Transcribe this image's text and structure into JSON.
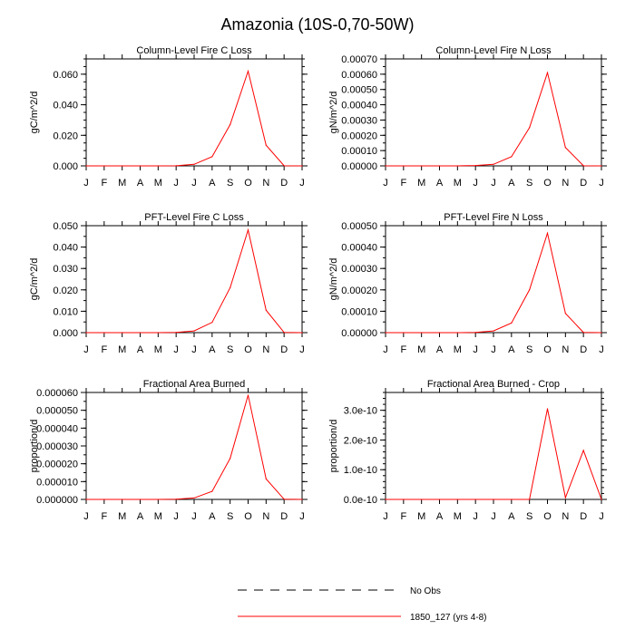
{
  "title": "Amazonia (10S-0,70-50W)",
  "legend": {
    "items": [
      {
        "label": "No Obs",
        "color": "#000000",
        "dashed": true
      },
      {
        "label": "1850_127 (yrs 4-8)",
        "color": "#ff0000",
        "dashed": false
      }
    ]
  },
  "chart_data": [
    {
      "type": "line",
      "title": "Column-Level Fire C Loss",
      "ylabel": "gC/m^2/d",
      "xlabel": "",
      "categories": [
        "J",
        "F",
        "M",
        "A",
        "M",
        "J",
        "J",
        "A",
        "S",
        "O",
        "N",
        "D",
        "J"
      ],
      "ylim": [
        0,
        0.07
      ],
      "yticks": [
        0,
        0.02,
        0.04,
        0.06
      ],
      "ytick_labels": [
        "0.000",
        "0.020",
        "0.040",
        "0.060"
      ],
      "yminor": 0.005,
      "series": [
        {
          "name": "1850_127 (yrs 4-8)",
          "color": "#ff0000",
          "values": [
            0,
            0,
            0,
            0,
            0,
            0.0001,
            0.001,
            0.006,
            0.027,
            0.062,
            0.0135,
            0.0001,
            0
          ]
        }
      ]
    },
    {
      "type": "line",
      "title": "Column-Level Fire N Loss",
      "ylabel": "gN/m^2/d",
      "xlabel": "",
      "categories": [
        "J",
        "F",
        "M",
        "A",
        "M",
        "J",
        "J",
        "A",
        "S",
        "O",
        "N",
        "D",
        "J"
      ],
      "ylim": [
        0,
        0.0007
      ],
      "yticks": [
        0,
        0.0001,
        0.0002,
        0.0003,
        0.0004,
        0.0005,
        0.0006,
        0.0007
      ],
      "ytick_labels": [
        "0.00000",
        "0.00010",
        "0.00020",
        "0.00030",
        "0.00040",
        "0.00050",
        "0.00060",
        "0.00070"
      ],
      "yminor": 5e-05,
      "series": [
        {
          "name": "1850_127 (yrs 4-8)",
          "color": "#ff0000",
          "values": [
            0,
            0,
            0,
            0,
            0,
            2e-06,
            1e-05,
            6e-05,
            0.00025,
            0.00061,
            0.00012,
            1e-06,
            0
          ]
        }
      ]
    },
    {
      "type": "line",
      "title": "PFT-Level Fire C Loss",
      "ylabel": "gC/m^2/d",
      "xlabel": "",
      "categories": [
        "J",
        "F",
        "M",
        "A",
        "M",
        "J",
        "J",
        "A",
        "S",
        "O",
        "N",
        "D",
        "J"
      ],
      "ylim": [
        0,
        0.05
      ],
      "yticks": [
        0,
        0.01,
        0.02,
        0.03,
        0.04,
        0.05
      ],
      "ytick_labels": [
        "0.000",
        "0.010",
        "0.020",
        "0.030",
        "0.040",
        "0.050"
      ],
      "yminor": 0.005,
      "series": [
        {
          "name": "1850_127 (yrs 4-8)",
          "color": "#ff0000",
          "values": [
            0,
            0,
            0,
            0,
            0,
            0.0001,
            0.0008,
            0.0048,
            0.021,
            0.048,
            0.0105,
            0.0001,
            0
          ]
        }
      ]
    },
    {
      "type": "line",
      "title": "PFT-Level Fire N Loss",
      "ylabel": "gN/m^2/d",
      "xlabel": "",
      "categories": [
        "J",
        "F",
        "M",
        "A",
        "M",
        "J",
        "J",
        "A",
        "S",
        "O",
        "N",
        "D",
        "J"
      ],
      "ylim": [
        0,
        0.0005
      ],
      "yticks": [
        0,
        0.0001,
        0.0002,
        0.0003,
        0.0004,
        0.0005
      ],
      "ytick_labels": [
        "0.00000",
        "0.00010",
        "0.00020",
        "0.00030",
        "0.00040",
        "0.00050"
      ],
      "yminor": 5e-05,
      "series": [
        {
          "name": "1850_127 (yrs 4-8)",
          "color": "#ff0000",
          "values": [
            0,
            0,
            0,
            0,
            0,
            1e-06,
            8e-06,
            4.5e-05,
            0.0002,
            0.000465,
            9e-05,
            1e-06,
            0
          ]
        }
      ]
    },
    {
      "type": "line",
      "title": "Fractional Area Burned",
      "ylabel": "proportion/d",
      "xlabel": "",
      "categories": [
        "J",
        "F",
        "M",
        "A",
        "M",
        "J",
        "J",
        "A",
        "S",
        "O",
        "N",
        "D",
        "J"
      ],
      "ylim": [
        0,
        6e-05
      ],
      "yticks": [
        0,
        1e-05,
        2e-05,
        3e-05,
        4e-05,
        5e-05,
        6e-05
      ],
      "ytick_labels": [
        "0.000000",
        "0.000010",
        "0.000020",
        "0.000030",
        "0.000040",
        "0.000050",
        "0.000060"
      ],
      "yminor": 5e-06,
      "series": [
        {
          "name": "1850_127 (yrs 4-8)",
          "color": "#ff0000",
          "values": [
            0,
            0,
            0,
            0,
            0,
            1e-07,
            8e-07,
            4.5e-06,
            2.3e-05,
            5.85e-05,
            1.15e-05,
            1e-07,
            0
          ]
        }
      ]
    },
    {
      "type": "line",
      "title": "Fractional Area Burned - Crop",
      "ylabel": "proportion/d",
      "xlabel": "",
      "categories": [
        "J",
        "F",
        "M",
        "A",
        "M",
        "J",
        "J",
        "A",
        "S",
        "O",
        "N",
        "D",
        "J"
      ],
      "ylim": [
        0,
        3.6e-10
      ],
      "yticks": [
        0,
        1e-10,
        2e-10,
        3e-10
      ],
      "ytick_labels": [
        "0.0e-10",
        "1.0e-10",
        "2.0e-10",
        "3.0e-10"
      ],
      "yminor": 2e-11,
      "series": [
        {
          "name": "1850_127 (yrs 4-8)",
          "color": "#ff0000",
          "values": [
            0,
            0,
            0,
            0,
            0,
            0,
            0,
            0,
            0,
            3.05e-10,
            6e-12,
            1.65e-10,
            0
          ]
        }
      ]
    }
  ]
}
